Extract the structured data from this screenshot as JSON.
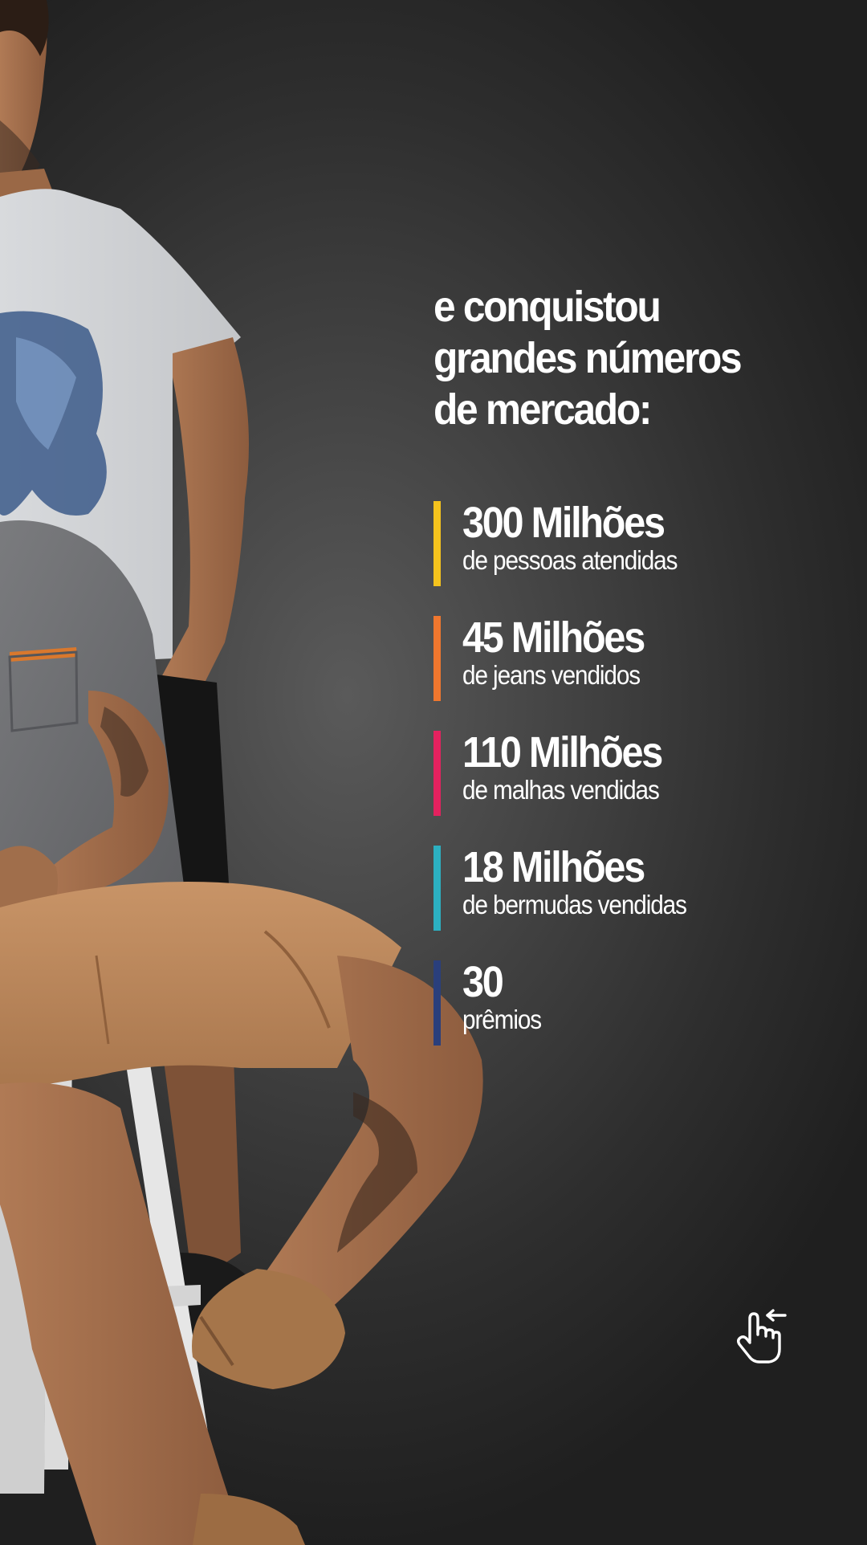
{
  "headline": {
    "line1": "e conquistou",
    "line2": "grandes números",
    "line3": "de mercado:"
  },
  "stats": [
    {
      "value": "300 Milhões",
      "description": "de pessoas atendidas",
      "color": "#f5c31d"
    },
    {
      "value": "45 Milhões",
      "description": "de jeans vendidos",
      "color": "#f0772e"
    },
    {
      "value": "110 Milhões",
      "description": "de malhas vendidas",
      "color": "#e4225f"
    },
    {
      "value": "18 Milhões",
      "description": "de bermudas vendidas",
      "color": "#2cb0c1"
    },
    {
      "value": "30",
      "description": "prêmios",
      "color": "#2a3f7c"
    }
  ],
  "icons": {
    "swipe": "swipe-left-hand-icon"
  }
}
